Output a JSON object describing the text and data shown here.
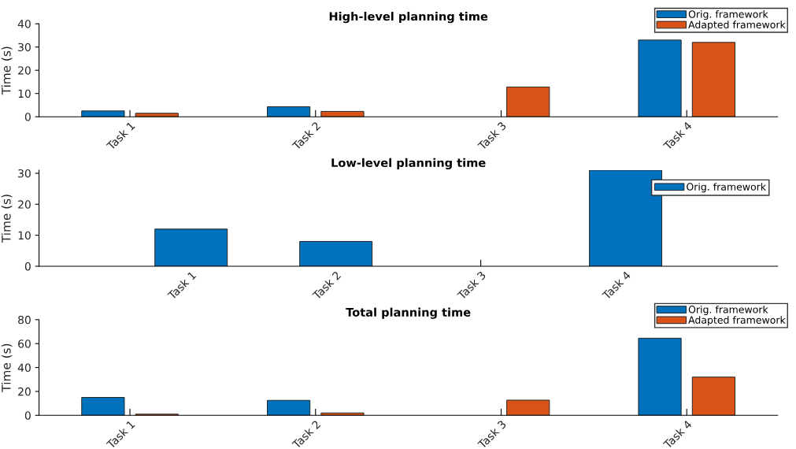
{
  "chart_data": [
    {
      "type": "bar",
      "title": "High-level planning time",
      "ylabel": "Time (s)",
      "categories": [
        "Task 1",
        "Task 2",
        "Task 3",
        "Task 4"
      ],
      "series": [
        {
          "name": "Orig. framework",
          "color": "#0072bd",
          "values": [
            2.5,
            4.3,
            null,
            33
          ]
        },
        {
          "name": "Adapted framework",
          "color": "#d95319",
          "values": [
            1.5,
            2.3,
            12.8,
            32
          ]
        }
      ],
      "ylim": [
        0,
        40
      ],
      "yticks": [
        0,
        10,
        20,
        30,
        40
      ],
      "grid": false,
      "legend": "top right"
    },
    {
      "type": "bar",
      "title": "Low-level planning time",
      "ylabel": "Time (s)",
      "categories": [
        "Task 1",
        "Task 2",
        "Task 3",
        "Task 4"
      ],
      "series": [
        {
          "name": "Orig. framework",
          "color": "#0072bd",
          "values": [
            12,
            8,
            null,
            31
          ]
        }
      ],
      "ylim": [
        0,
        31
      ],
      "yticks": [
        0,
        10,
        20,
        30
      ],
      "grid": false,
      "legend": "top right"
    },
    {
      "type": "bar",
      "title": "Total planning time",
      "ylabel": "Time (s)",
      "categories": [
        "Task 1",
        "Task 2",
        "Task 3",
        "Task 4"
      ],
      "series": [
        {
          "name": "Orig. framework",
          "color": "#0072bd",
          "values": [
            15,
            12.5,
            null,
            64.5
          ]
        },
        {
          "name": "Adapted framework",
          "color": "#d95319",
          "values": [
            1,
            2,
            12.7,
            32
          ]
        }
      ],
      "ylim": [
        0,
        80
      ],
      "yticks": [
        0,
        20,
        40,
        60,
        80
      ],
      "grid": false,
      "legend": "top right"
    }
  ]
}
